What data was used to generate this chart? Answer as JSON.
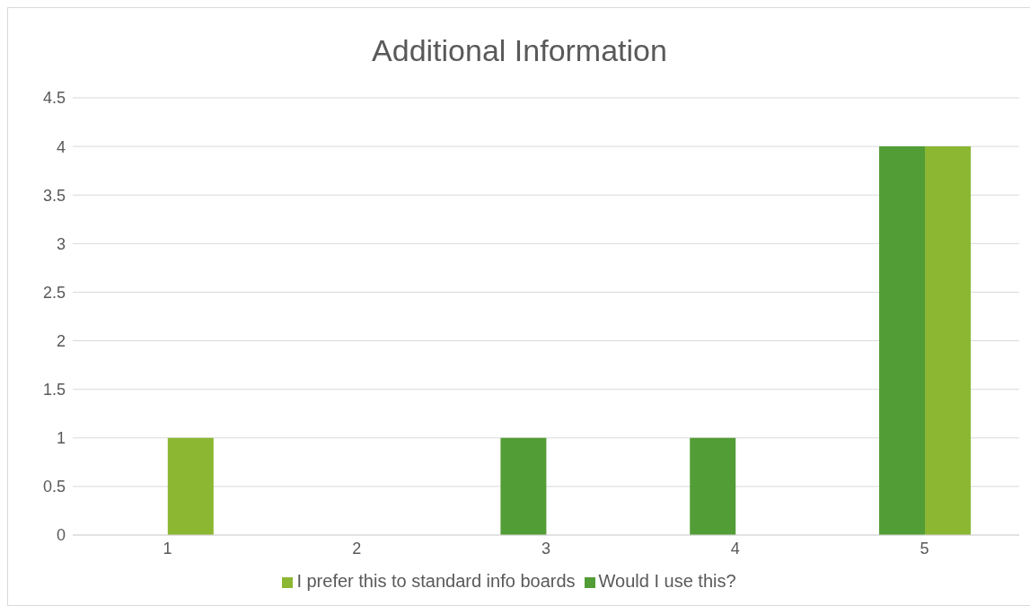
{
  "chart_data": {
    "type": "bar",
    "title": "Additional Information",
    "categories": [
      "1",
      "2",
      "3",
      "4",
      "5"
    ],
    "series": [
      {
        "name": "Would I use this?",
        "color": "#539d37",
        "values": [
          0,
          0,
          1,
          1,
          4
        ]
      },
      {
        "name": "I prefer this to standard info boards",
        "color": "#8bb733",
        "values": [
          1,
          0,
          0,
          0,
          4
        ]
      }
    ],
    "ylim": [
      0,
      4.5
    ],
    "yticks": [
      0,
      0.5,
      1,
      1.5,
      2,
      2.5,
      3,
      3.5,
      4,
      4.5
    ],
    "grid": "y",
    "legend": "bottom"
  }
}
